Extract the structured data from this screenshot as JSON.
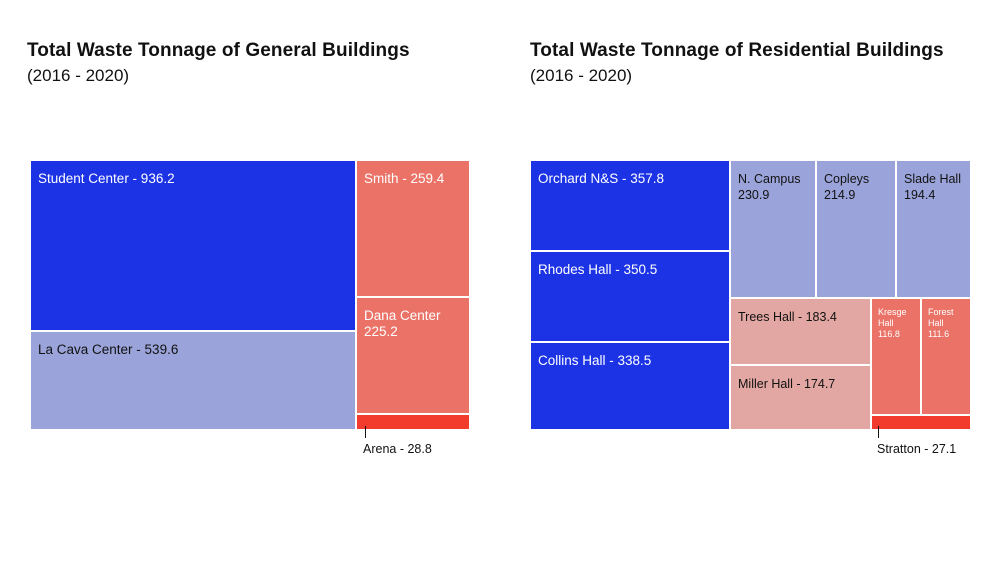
{
  "chart_data": [
    {
      "type": "treemap",
      "title": "Total Waste Tonnage of General Buildings",
      "subtitle": "(2016 - 2020)",
      "items": [
        {
          "name": "Student Center",
          "value": 936.2,
          "label": "Student Center - 936.2",
          "color": "#1c33e5",
          "text_color": "#ffffff"
        },
        {
          "name": "La Cava Center",
          "value": 539.6,
          "label": "La Cava Center - 539.6",
          "color": "#9ba4da",
          "text_color": "#111111"
        },
        {
          "name": "Smith",
          "value": 259.4,
          "label": "Smith - 259.4",
          "color": "#ea7267",
          "text_color": "#ffffff"
        },
        {
          "name": "Dana Center",
          "value": 225.2,
          "label": "Dana Center\n225.2",
          "color": "#ea7267",
          "text_color": "#ffffff"
        },
        {
          "name": "Arena",
          "value": 28.8,
          "label": "Arena - 28.8",
          "color": "#f23a2d",
          "text_color": "#111111",
          "outside": true
        }
      ]
    },
    {
      "type": "treemap",
      "title": "Total Waste Tonnage of Residential Buildings",
      "subtitle": "(2016 - 2020)",
      "items": [
        {
          "name": "Orchard N&S",
          "value": 357.8,
          "label": "Orchard N&S - 357.8",
          "color": "#1c33e5",
          "text_color": "#ffffff"
        },
        {
          "name": "Rhodes Hall",
          "value": 350.5,
          "label": "Rhodes Hall - 350.5",
          "color": "#1c33e5",
          "text_color": "#ffffff"
        },
        {
          "name": "Collins Hall",
          "value": 338.5,
          "label": "Collins Hall - 338.5",
          "color": "#1c33e5",
          "text_color": "#ffffff"
        },
        {
          "name": "N. Campus",
          "value": 230.9,
          "label": "N. Campus\n230.9",
          "color": "#9ba4da",
          "text_color": "#111111"
        },
        {
          "name": "Copleys",
          "value": 214.9,
          "label": "Copleys\n214.9",
          "color": "#9ba4da",
          "text_color": "#111111"
        },
        {
          "name": "Slade Hall",
          "value": 194.4,
          "label": "Slade Hall\n194.4",
          "color": "#9ba4da",
          "text_color": "#111111"
        },
        {
          "name": "Trees Hall",
          "value": 183.4,
          "label": "Trees Hall - 183.4",
          "color": "#e2a7a2",
          "text_color": "#111111"
        },
        {
          "name": "Miller Hall",
          "value": 174.7,
          "label": "Miller Hall - 174.7",
          "color": "#e2a7a2",
          "text_color": "#111111"
        },
        {
          "name": "Kresge Hall",
          "value": 116.8,
          "label": "Kresge\nHall\n116.8",
          "color": "#ea7267",
          "text_color": "#ffffff"
        },
        {
          "name": "Forest Hall",
          "value": 111.6,
          "label": "Forest\nHall\n111.6",
          "color": "#ea7267",
          "text_color": "#ffffff"
        },
        {
          "name": "Stratton",
          "value": 27.1,
          "label": "Stratton - 27.1",
          "color": "#f23a2d",
          "text_color": "#111111",
          "outside": true
        }
      ]
    }
  ]
}
